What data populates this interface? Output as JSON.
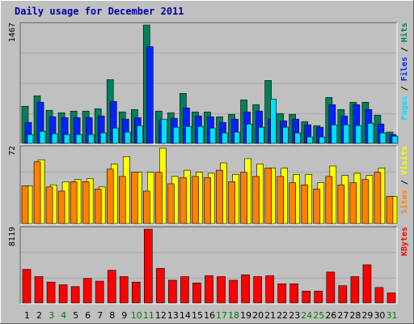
{
  "title": "Daily usage for December 2011",
  "colors": {
    "background": "#c0c0c0",
    "plot": "#c0c0c0",
    "hits": "#00805c",
    "files": "#0024ff",
    "pages": "#00e0ff",
    "visits": "#ffff00",
    "sites": "#ff8000",
    "kbytes": "#ff0000",
    "weekend": "#008000",
    "weekday": "#000000",
    "title": "#0000aa"
  },
  "chart_data": [
    {
      "type": "bar",
      "panel": "hits-files-pages",
      "ymax_label": "1467",
      "ymax": 1467,
      "legend": [
        "Pages",
        "/",
        "Files",
        "/",
        "Hits"
      ],
      "categories": [
        "1",
        "2",
        "3",
        "4",
        "5",
        "6",
        "7",
        "8",
        "9",
        "10",
        "11",
        "12",
        "13",
        "14",
        "15",
        "16",
        "17",
        "18",
        "19",
        "20",
        "21",
        "22",
        "23",
        "24",
        "25",
        "26",
        "27",
        "28",
        "29",
        "30",
        "31"
      ],
      "weekend_days": [
        3,
        4,
        10,
        11,
        17,
        18,
        24,
        25,
        31
      ],
      "series": [
        {
          "name": "Hits",
          "values": [
            460,
            590,
            410,
            380,
            400,
            400,
            430,
            790,
            390,
            420,
            1467,
            400,
            380,
            620,
            390,
            390,
            330,
            360,
            540,
            480,
            780,
            370,
            360,
            270,
            220,
            570,
            420,
            510,
            510,
            350,
            140
          ]
        },
        {
          "name": "Files",
          "values": [
            260,
            510,
            330,
            320,
            320,
            320,
            340,
            520,
            300,
            320,
            1200,
            290,
            310,
            440,
            340,
            330,
            260,
            300,
            390,
            400,
            300,
            280,
            300,
            230,
            200,
            480,
            340,
            480,
            420,
            240,
            110
          ]
        },
        {
          "name": "Pages",
          "values": [
            110,
            150,
            120,
            110,
            110,
            110,
            130,
            190,
            140,
            220,
            0,
            300,
            200,
            210,
            210,
            190,
            130,
            140,
            240,
            200,
            550,
            200,
            130,
            80,
            80,
            230,
            230,
            220,
            250,
            130,
            90
          ]
        }
      ]
    },
    {
      "type": "bar",
      "panel": "visits-sites",
      "ymax_label": "72",
      "ymax": 72,
      "legend": [
        "Sites",
        "/",
        "Visits",
        "/",
        "Visits"
      ],
      "categories": [
        "1",
        "2",
        "3",
        "4",
        "5",
        "6",
        "7",
        "8",
        "9",
        "10",
        "11",
        "12",
        "13",
        "14",
        "15",
        "16",
        "17",
        "18",
        "19",
        "20",
        "21",
        "22",
        "23",
        "24",
        "25",
        "26",
        "27",
        "28",
        "29",
        "30",
        "31"
      ],
      "weekend_days": [
        3,
        4,
        10,
        11,
        17,
        18,
        24,
        25,
        31
      ],
      "series": [
        {
          "name": "Visits",
          "values": [
            36,
            61,
            37,
            40,
            42,
            43,
            35,
            57,
            64,
            49,
            49,
            72,
            45,
            51,
            49,
            48,
            58,
            47,
            62,
            57,
            53,
            53,
            47,
            47,
            39,
            55,
            46,
            48,
            46,
            53,
            26
          ]
        },
        {
          "name": "Sites",
          "values": [
            36,
            59,
            35,
            31,
            40,
            40,
            33,
            52,
            45,
            49,
            31,
            49,
            38,
            44,
            45,
            44,
            51,
            40,
            49,
            45,
            53,
            45,
            39,
            37,
            33,
            45,
            37,
            39,
            42,
            49,
            26
          ]
        }
      ]
    },
    {
      "type": "bar",
      "panel": "kbytes",
      "ymax_label": "8119",
      "ymax": 8119,
      "legend": [
        "KBytes"
      ],
      "categories": [
        "1",
        "2",
        "3",
        "4",
        "5",
        "6",
        "7",
        "8",
        "9",
        "10",
        "11",
        "12",
        "13",
        "14",
        "15",
        "16",
        "17",
        "18",
        "19",
        "20",
        "21",
        "22",
        "23",
        "24",
        "25",
        "26",
        "27",
        "28",
        "29",
        "30",
        "31"
      ],
      "weekend_days": [
        3,
        4,
        10,
        11,
        17,
        18,
        24,
        25,
        31
      ],
      "series": [
        {
          "name": "KBytes",
          "values": [
            3700,
            2900,
            2300,
            2000,
            1800,
            2700,
            2400,
            3600,
            2900,
            2300,
            8119,
            3800,
            2500,
            2900,
            2200,
            3000,
            2900,
            2500,
            3100,
            2900,
            3000,
            2100,
            2100,
            1300,
            1300,
            3400,
            1900,
            2900,
            4200,
            1700,
            1100
          ]
        }
      ]
    }
  ]
}
